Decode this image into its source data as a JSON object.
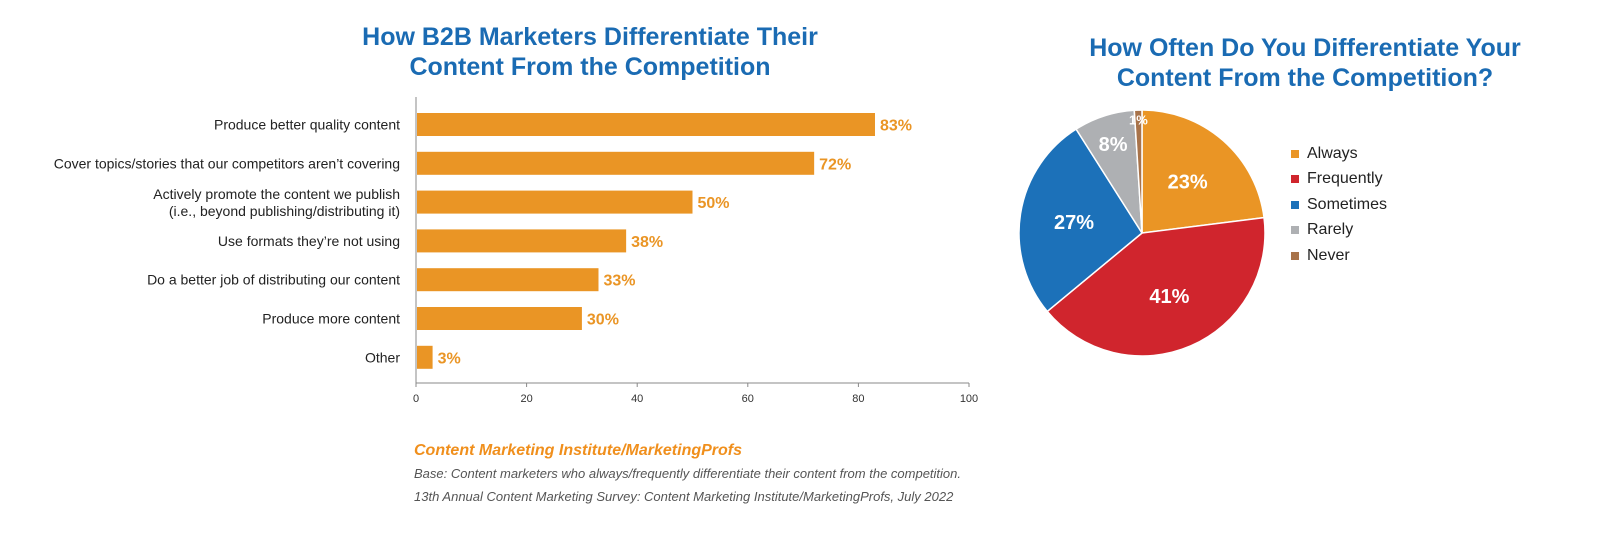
{
  "chart_data": [
    {
      "type": "bar",
      "orientation": "horizontal",
      "title": "How B2B Marketers Differentiate Their Content From the Competition",
      "title_lines": [
        "How B2B Marketers Differentiate Their",
        "Content From the Competition"
      ],
      "categories": [
        [
          "Produce better quality content"
        ],
        [
          "Cover topics/stories that our competitors aren’t covering"
        ],
        [
          "Actively promote the content we publish",
          "(i.e., beyond publishing/distributing it)"
        ],
        [
          "Use formats they’re not using"
        ],
        [
          "Do a better job of distributing our content"
        ],
        [
          "Produce more content"
        ],
        [
          "Other"
        ]
      ],
      "values": [
        83,
        72,
        50,
        38,
        33,
        30,
        3
      ],
      "value_labels": [
        "83%",
        "72%",
        "50%",
        "38%",
        "33%",
        "30%",
        "3%"
      ],
      "xlim": [
        0,
        100
      ],
      "xticks": [
        0,
        20,
        40,
        60,
        80,
        100
      ],
      "xlabel": "",
      "ylabel": "",
      "bar_color": "#ea9525",
      "label_color": "#ea9525"
    },
    {
      "type": "pie",
      "title": "How Often Do You Differentiate Your Content From the Competition?",
      "title_lines": [
        "How Often Do You Differentiate Your",
        "Content From the Competition?"
      ],
      "labels": [
        "Always",
        "Frequently",
        "Sometimes",
        "Rarely",
        "Never"
      ],
      "values": [
        23,
        41,
        27,
        8,
        1
      ],
      "value_labels": [
        "23%",
        "41%",
        "27%",
        "8%",
        "1%"
      ],
      "colors": [
        "#ea9525",
        "#d0252d",
        "#1c71b9",
        "#aeb0b3",
        "#a8734a"
      ],
      "legend_position": "right"
    }
  ],
  "source": {
    "org": "Content Marketing Institute/MarketingProfs",
    "base": "Base: Content marketers who always/frequently differentiate their content from the competition.",
    "survey": "13th Annual Content Marketing Survey: Content Marketing Institute/MarketingProfs, July 2022"
  }
}
